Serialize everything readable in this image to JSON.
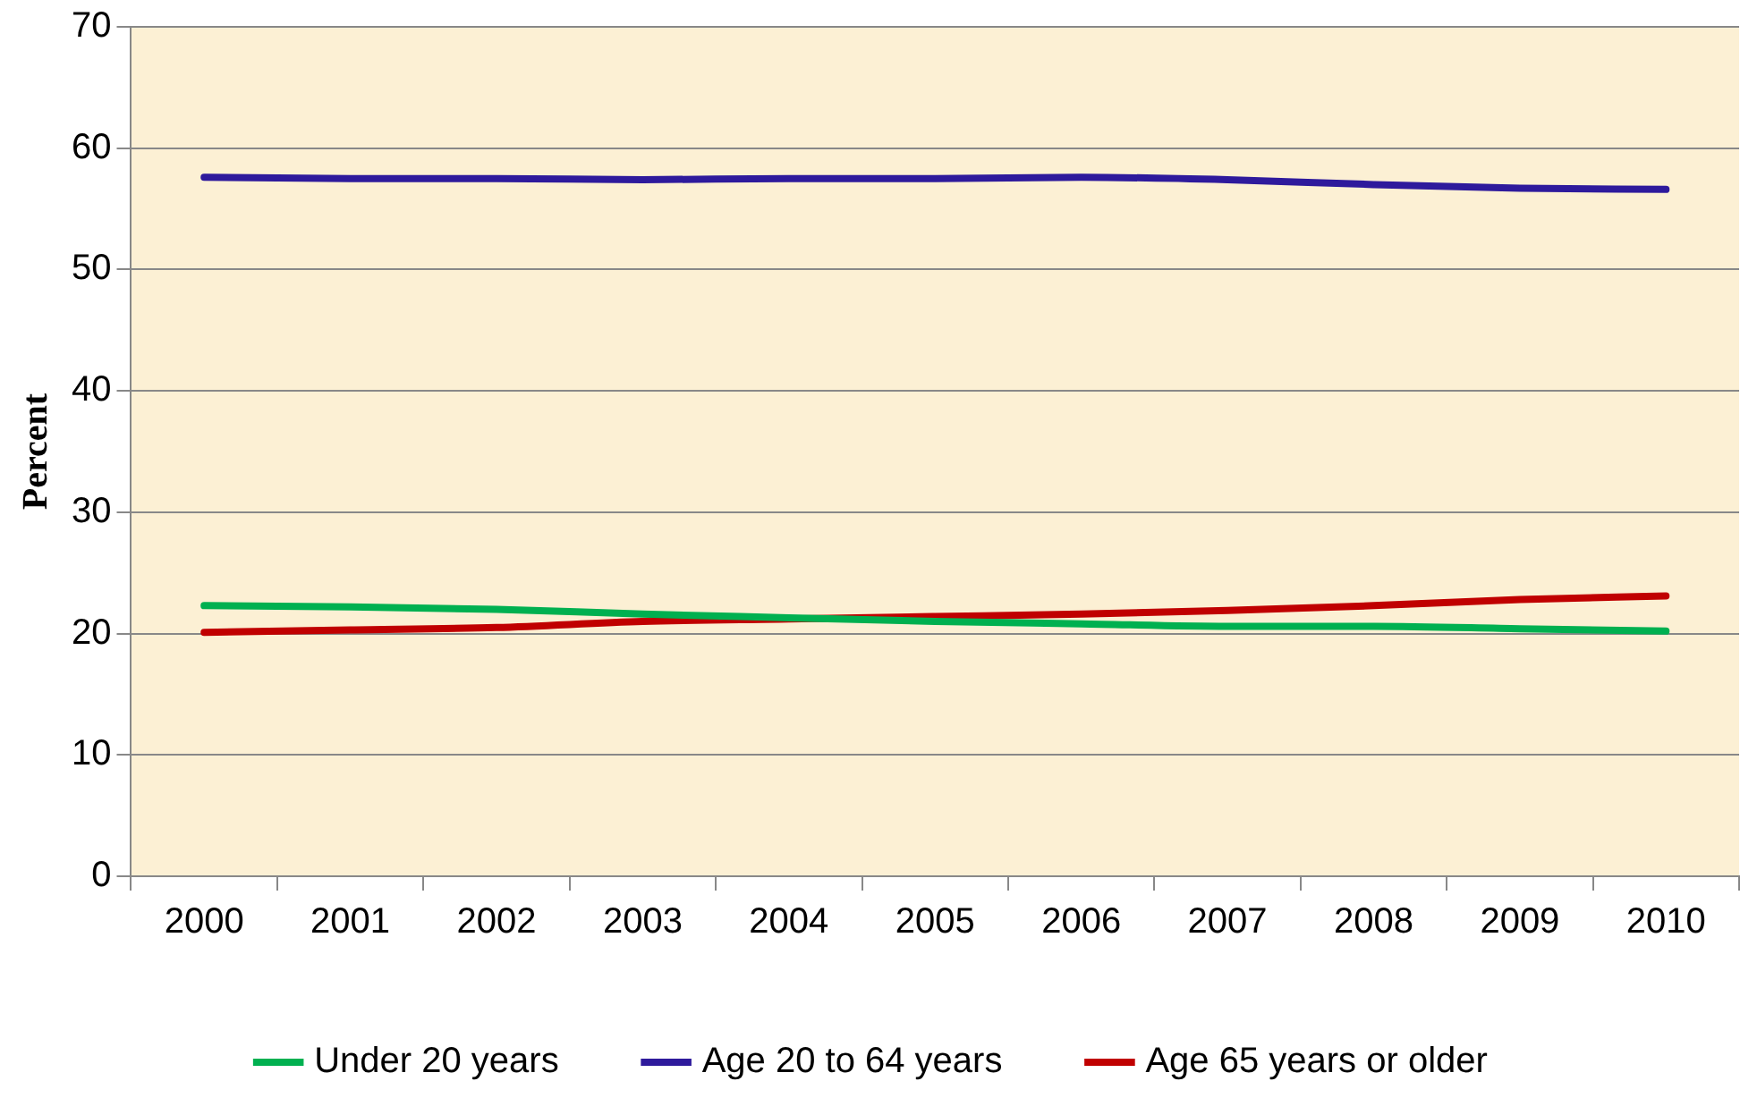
{
  "chart_data": {
    "type": "line",
    "ylabel": "Percent",
    "categories": [
      "2000",
      "2001",
      "2002",
      "2003",
      "2004",
      "2005",
      "2006",
      "2007",
      "2008",
      "2009",
      "2010"
    ],
    "series": [
      {
        "name": "Under 20 years",
        "color": "#00b050",
        "values": [
          22.3,
          22.2,
          22.0,
          21.6,
          21.3,
          21.0,
          20.8,
          20.6,
          20.6,
          20.4,
          20.2
        ]
      },
      {
        "name": "Age 20 to 64 years",
        "color": "#2e1a9c",
        "values": [
          57.6,
          57.5,
          57.5,
          57.4,
          57.5,
          57.5,
          57.6,
          57.4,
          57.0,
          56.7,
          56.6
        ]
      },
      {
        "name": "Age 65 years or older",
        "color": "#c00000",
        "values": [
          20.1,
          20.3,
          20.5,
          21.0,
          21.2,
          21.4,
          21.6,
          21.9,
          22.3,
          22.8,
          23.1
        ]
      }
    ],
    "ylim": [
      0,
      70
    ],
    "yticks": [
      0,
      10,
      20,
      30,
      40,
      50,
      60,
      70
    ],
    "grid": "y",
    "legend": "bottom",
    "marker": "none",
    "line_style": "solid"
  }
}
